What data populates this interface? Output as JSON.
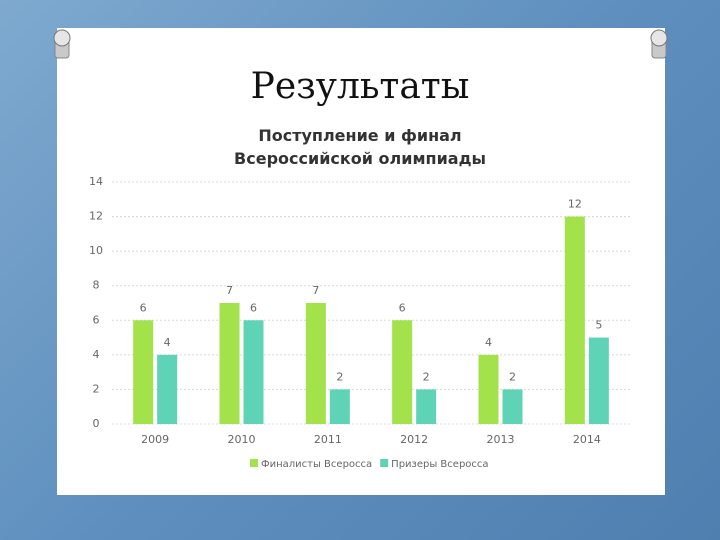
{
  "title": "Результаты",
  "chart_data": {
    "type": "bar",
    "title": "Поступление и финал Всероссийской олимпиады",
    "categories": [
      "2009",
      "2010",
      "2011",
      "2012",
      "2013",
      "2014"
    ],
    "series": [
      {
        "name": "Финалисты Всеросса",
        "color": "#a3e24b",
        "values": [
          6,
          7,
          7,
          6,
          4,
          12
        ]
      },
      {
        "name": "Призеры Всеросса",
        "color": "#5ed3b6",
        "values": [
          4,
          6,
          2,
          2,
          2,
          5
        ]
      }
    ],
    "ylim": [
      0,
      14
    ],
    "yticks": [
      0,
      2,
      4,
      6,
      8,
      10,
      12,
      14
    ],
    "grid": true,
    "legend": "bottom"
  }
}
